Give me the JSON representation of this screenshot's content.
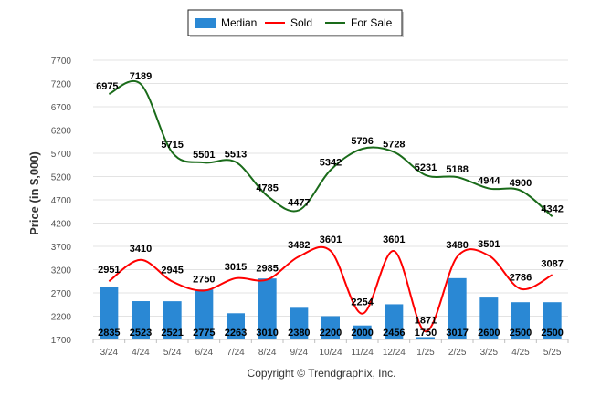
{
  "chart_data": {
    "type": "bar",
    "categories": [
      "3/24",
      "4/24",
      "5/24",
      "6/24",
      "7/24",
      "8/24",
      "9/24",
      "10/24",
      "11/24",
      "12/24",
      "1/25",
      "2/25",
      "3/25",
      "4/25",
      "5/25"
    ],
    "series": [
      {
        "name": "Median",
        "type": "bar",
        "color": "#2a88d4",
        "values": [
          2835,
          2523,
          2521,
          2775,
          2263,
          3010,
          2380,
          2200,
          2000,
          2456,
          1750,
          3017,
          2600,
          2500,
          2500
        ]
      },
      {
        "name": "Sold",
        "type": "line",
        "color": "#ff0000",
        "values": [
          2951,
          3410,
          2945,
          2750,
          3015,
          2985,
          3482,
          3601,
          2254,
          3601,
          1871,
          3480,
          3501,
          2786,
          3087
        ]
      },
      {
        "name": "For Sale",
        "type": "line",
        "color": "#1a6b1a",
        "values": [
          6975,
          7189,
          5715,
          5501,
          5513,
          4785,
          4477,
          5342,
          5796,
          5728,
          5231,
          5188,
          4944,
          4900,
          4342
        ]
      }
    ],
    "ylabel": "Price (in $,000)",
    "yticks": [
      1700,
      2200,
      2700,
      3200,
      3700,
      4200,
      4700,
      5200,
      5700,
      6200,
      6700,
      7200,
      7700
    ],
    "ylim": [
      1700,
      7700
    ],
    "grid": true,
    "legend": "top-center"
  },
  "footer": {
    "copyright": "Copyright © Trendgraphix, Inc."
  }
}
